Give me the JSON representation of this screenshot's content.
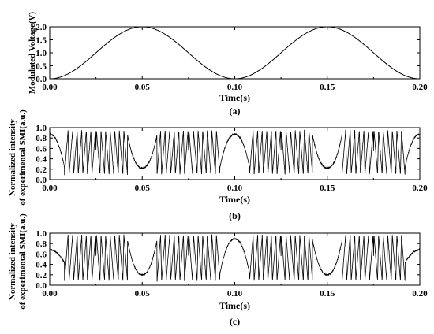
{
  "chart_data": [
    {
      "type": "line",
      "panel_label": "(a)",
      "xlabel": "Time(s)",
      "ylabel": "Modulated Voltage(V)",
      "ylabel_lines": [
        "Modulated Voltage(V)"
      ],
      "xlim": [
        0,
        0.2
      ],
      "ylim": [
        0,
        2.0
      ],
      "xticks": [
        "0.00",
        "0.05",
        "0.10",
        "0.15",
        "0.20"
      ],
      "yticks": [
        "0.0",
        "0.5",
        "1.0",
        "1.5",
        "2.0"
      ],
      "series": [
        {
          "x": [
            0,
            0.0125,
            0.025,
            0.0375,
            0.05,
            0.0625,
            0.075,
            0.0875,
            0.1,
            0.1125,
            0.125,
            0.1375,
            0.15,
            0.1625,
            0.175,
            0.1875,
            0.2
          ],
          "y": [
            0,
            0.29,
            1.0,
            1.71,
            2.0,
            1.71,
            1.0,
            0.29,
            0,
            0.29,
            1.0,
            1.71,
            2.0,
            1.71,
            1.0,
            0.29,
            0
          ]
        }
      ]
    },
    {
      "type": "line",
      "panel_label": "(b)",
      "xlabel": "Time(s)",
      "ylabel": "Normalized intensity of experimental SMI(a.u.)",
      "ylabel_lines": [
        "Normalized intensity",
        "of experimental SMI(a.u.)"
      ],
      "xlim": [
        0,
        0.2
      ],
      "ylim": [
        0,
        1.0
      ],
      "xticks": [
        "0.00",
        "0.05",
        "0.10",
        "0.15",
        "0.20"
      ],
      "yticks": [
        "0.0",
        "0.2",
        "0.4",
        "0.6",
        "0.8",
        "1.0"
      ],
      "signal": {
        "period_s": 0.1,
        "fringes_per_half_period": 17,
        "low": 0.1,
        "high": 0.95,
        "noise": 0.03,
        "turning_points": [
          {
            "t": 0.0,
            "shape": "peak"
          },
          {
            "t": 0.05,
            "shape": "dip"
          },
          {
            "t": 0.1,
            "shape": "peak"
          },
          {
            "t": 0.15,
            "shape": "dip"
          },
          {
            "t": 0.2,
            "shape": "peak"
          }
        ]
      }
    },
    {
      "type": "line",
      "panel_label": "(c)",
      "xlabel": "Time(s)",
      "ylabel": "Normalized intensity of experimental SMI(a.u.)",
      "ylabel_lines": [
        "Normalized intensity",
        "of experimental SMI(a.u.)"
      ],
      "xlim": [
        0,
        0.2
      ],
      "ylim": [
        0,
        1.0
      ],
      "xticks": [
        "0.00",
        "0.05",
        "0.10",
        "0.15",
        "0.20"
      ],
      "yticks": [
        "0.0",
        "0.2",
        "0.4",
        "0.6",
        "0.8",
        "1.0"
      ],
      "signal": {
        "period_s": 0.1,
        "fringes_per_half_period": 17,
        "low": 0.08,
        "high": 0.97,
        "noise": 0.025,
        "turning_points": [
          {
            "t": 0.0,
            "shape": "plateau"
          },
          {
            "t": 0.05,
            "shape": "dip"
          },
          {
            "t": 0.1,
            "shape": "peak"
          },
          {
            "t": 0.15,
            "shape": "dip"
          },
          {
            "t": 0.2,
            "shape": "plateau"
          }
        ]
      }
    }
  ]
}
